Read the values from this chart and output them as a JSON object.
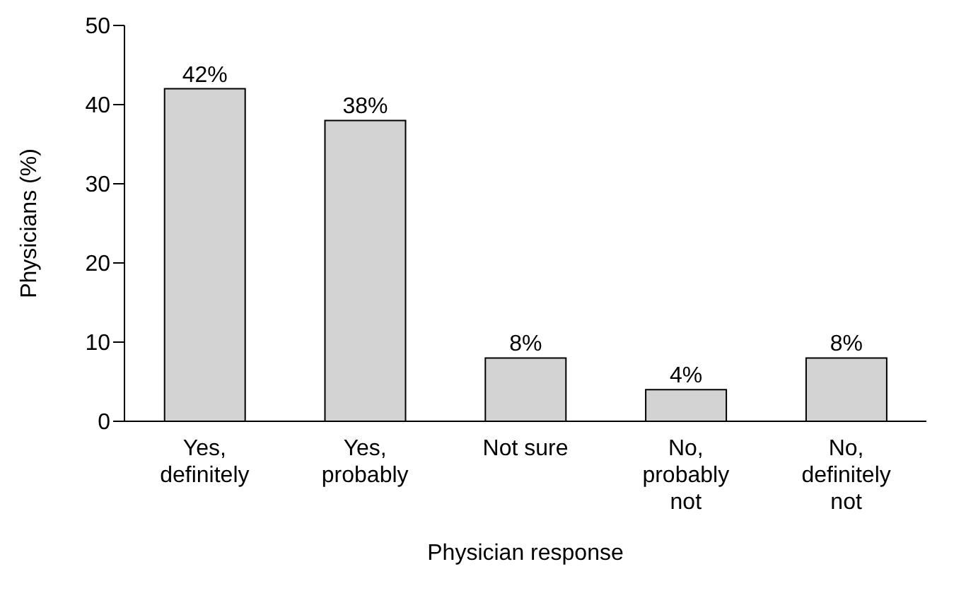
{
  "chart_data": {
    "type": "bar",
    "xlabel": "Physician response",
    "ylabel": "Physicians (%)",
    "categories": [
      "Yes, definitely",
      "Yes, probably",
      "Not sure",
      "No, probably not",
      "No, definitely not"
    ],
    "values": [
      42,
      38,
      8,
      4,
      8
    ],
    "value_labels": [
      "42%",
      "38%",
      "8%",
      "4%",
      "8%"
    ],
    "color": "#d3d3d3",
    "ylim": [
      0,
      50
    ],
    "yticks": [
      0,
      10,
      20,
      30,
      40,
      50
    ],
    "grid": false,
    "legend": false
  }
}
